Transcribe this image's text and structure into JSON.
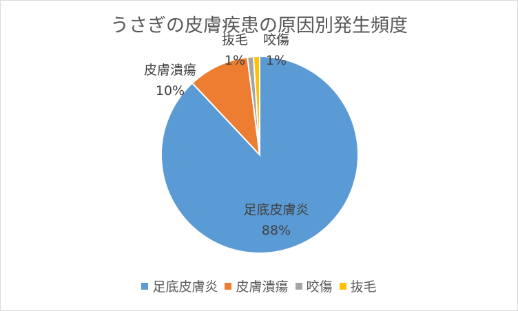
{
  "chart_data": {
    "type": "pie",
    "title": "うさぎの皮膚疾患の原因別発生頻度",
    "categories": [
      "足底皮膚炎",
      "皮膚潰瘍",
      "咬傷",
      "抜毛"
    ],
    "values": [
      88,
      10,
      1,
      1
    ],
    "labels": [
      "88%",
      "10%",
      "1%",
      "1%"
    ],
    "colors": [
      "#5b9bd5",
      "#ed7d31",
      "#a5a5a5",
      "#ffc000"
    ],
    "legend_position": "bottom"
  }
}
